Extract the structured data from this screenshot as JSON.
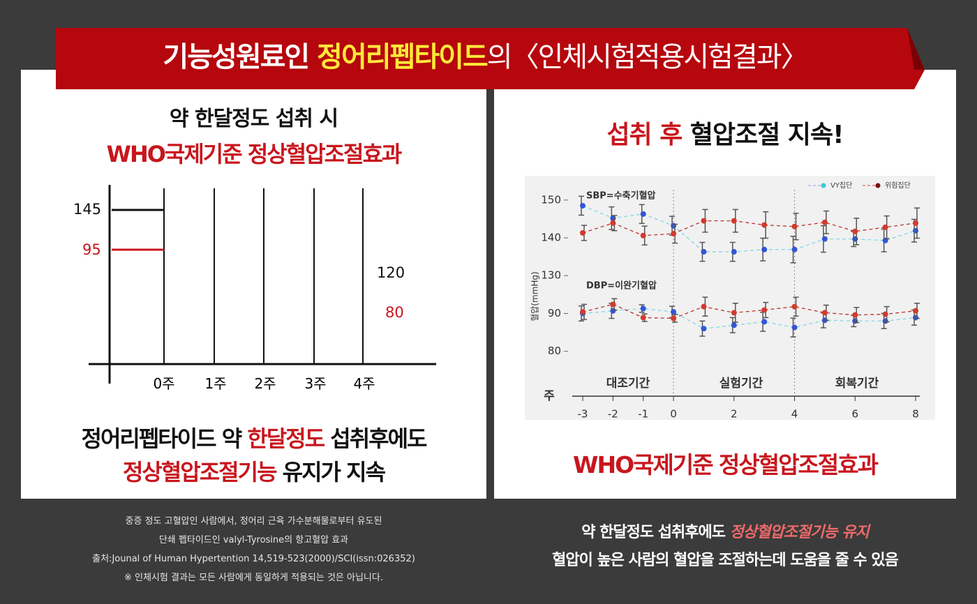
{
  "header": {
    "part1": "기능성원료인 ",
    "highlight": "정어리펩타이드",
    "part2": "의〈인체시험적용시험결과〉"
  },
  "left": {
    "heading1": "약 한달정도 섭취 시",
    "heading2": "WHO국제기준 정상혈압조절효과",
    "diagram": {
      "start_high": "145",
      "start_low": "95",
      "end_high": "120",
      "end_low": "80",
      "weeks": [
        "0주",
        "1주",
        "2주",
        "3주",
        "4주"
      ]
    },
    "summary1": [
      "정어리펩타이드 약 ",
      "한달정도",
      " 섭취후에도"
    ],
    "summary2": [
      "정상혈압조절기능",
      " 유지가 지속"
    ]
  },
  "right": {
    "heading": [
      "섭취 후",
      " 혈압조절 지속!"
    ],
    "summary": "WHO국제기준 정상혈압조절효과"
  },
  "chart_data": {
    "type": "line",
    "xlabel": "주",
    "ylabel": "혈압(mmHg)",
    "x": [
      -3,
      -2,
      -1,
      0,
      1,
      2,
      3,
      4,
      5,
      6,
      7,
      8
    ],
    "xlim": [
      -3,
      8
    ],
    "xticks": [
      -3,
      -2,
      -1,
      0,
      2,
      4,
      6,
      8
    ],
    "dividers": [
      0,
      4
    ],
    "periods": [
      "대조기간",
      "실험기간",
      "회복기간"
    ],
    "series": [
      {
        "name": "VY집단",
        "color": "#3355d6"
      },
      {
        "name": "위험집단",
        "color": "#d23a2e"
      }
    ],
    "panels": [
      {
        "label": "SBP=수축기혈압",
        "ylim": [
          128,
          152
        ],
        "yticks": [
          130,
          140,
          150
        ],
        "values": [
          [
            148.5,
            145.2,
            146.3,
            143.2,
            136.3,
            136.3,
            136.9,
            136.9,
            139.7,
            139.7,
            139.3,
            141.9
          ],
          [
            141.3,
            143.9,
            140.6,
            141.1,
            144.5,
            144.5,
            143.4,
            143.0,
            144.1,
            141.7,
            142.8,
            143.9
          ]
        ],
        "errors": [
          [
            2.5,
            3,
            2.5,
            2.5,
            2.5,
            2.5,
            3,
            3.5,
            3.5,
            2,
            3,
            3
          ],
          [
            2,
            2,
            2.5,
            2.5,
            3,
            3,
            3.5,
            3.5,
            3,
            3.5,
            3,
            4
          ]
        ]
      },
      {
        "label": "DBP=이완기혈압",
        "ylim": [
          77,
          98
        ],
        "yticks": [
          80,
          90
        ],
        "values": [
          [
            90,
            90.7,
            91.3,
            90.4,
            86,
            86.9,
            87.8,
            86.3,
            88.2,
            88,
            88,
            88.9
          ],
          [
            90.4,
            92.4,
            88.9,
            88.7,
            91.8,
            90.2,
            90.9,
            91.8,
            90.2,
            89.6,
            89.8,
            90.7
          ]
        ],
        "errors": [
          [
            2,
            2,
            1,
            1.5,
            2,
            2,
            2.5,
            2.5,
            2,
            1.5,
            2,
            2
          ],
          [
            2,
            1.5,
            1,
            1,
            2.5,
            2.5,
            2,
            2.5,
            2,
            2,
            2,
            2
          ]
        ]
      }
    ]
  },
  "footer_left": [
    "중증 정도 고혈압인 사람에서, 정어리 근육 가수분해물로부터 유도된",
    "단쇄 펩타이드인 valyl-Tyrosine의 항고혈압 효과",
    "출처:Jounal of Human Hypertention 14,519-523(2000)/SCI(issn:026352)",
    "※ 인체시험 결과는 모든 사람에게 동일하게 적용되는 것은 아닙니다."
  ],
  "footer_right": {
    "line1": [
      "약 한달정도 섭취후에도 ",
      "정상혈압조절기능 유지"
    ],
    "line2": "혈압이 높은 사람의 혈압을 조절하는데 도움을 줄 수 있음"
  }
}
